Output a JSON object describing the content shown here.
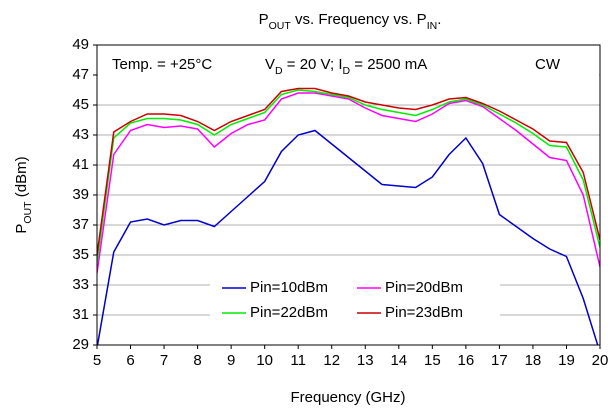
{
  "chart_data": {
    "type": "line",
    "title": [
      {
        "text": "P"
      },
      {
        "sub": "OUT"
      },
      {
        "text": " vs. Frequency vs. P"
      },
      {
        "sub": "IN"
      },
      {
        "text": "."
      }
    ],
    "xlabel": "Frequency (GHz)",
    "ylabel": [
      {
        "text": "P"
      },
      {
        "sub": "OUT"
      },
      {
        "text": " (dBm)"
      }
    ],
    "annotations": [
      [
        {
          "text": "Temp. = +25°C"
        }
      ],
      [
        {
          "text": "V"
        },
        {
          "sub": "D"
        },
        {
          "text": " = 20 V; I"
        },
        {
          "sub": "D"
        },
        {
          "text": " = 2500 mA"
        }
      ],
      [
        {
          "text": "CW"
        }
      ]
    ],
    "x": [
      5,
      5.5,
      6,
      6.5,
      7,
      7.5,
      8,
      8.5,
      9,
      9.5,
      10,
      10.5,
      11,
      11.5,
      12,
      12.5,
      13,
      13.5,
      14,
      14.5,
      15,
      15.5,
      16,
      16.5,
      17,
      17.5,
      18,
      18.5,
      19,
      19.5,
      20
    ],
    "series": [
      {
        "name": "Pin=10dBm",
        "color": "#0000cc",
        "values": [
          28.8,
          35.2,
          37.2,
          37.4,
          37.0,
          37.3,
          37.3,
          36.9,
          37.9,
          38.9,
          39.9,
          41.9,
          43.0,
          43.3,
          42.4,
          41.5,
          40.6,
          39.7,
          39.6,
          39.5,
          40.2,
          41.7,
          42.8,
          41.1,
          37.7,
          36.9,
          36.1,
          35.4,
          34.9,
          32.1,
          28.5
        ]
      },
      {
        "name": "Pin=20dBm",
        "color": "#ff00ff",
        "values": [
          33.8,
          41.7,
          43.3,
          43.7,
          43.5,
          43.6,
          43.4,
          42.2,
          43.1,
          43.7,
          44.0,
          45.4,
          45.8,
          45.8,
          45.6,
          45.4,
          44.8,
          44.3,
          44.1,
          43.9,
          44.4,
          45.1,
          45.3,
          44.9,
          44.1,
          43.3,
          42.4,
          41.5,
          41.3,
          39.0,
          34.2
        ]
      },
      {
        "name": "Pin=22dBm",
        "color": "#00ee00",
        "values": [
          34.5,
          42.8,
          43.8,
          44.1,
          44.1,
          44.0,
          43.7,
          43.0,
          43.7,
          44.1,
          44.5,
          45.7,
          46.0,
          45.9,
          45.7,
          45.5,
          45.0,
          44.7,
          44.5,
          44.3,
          44.7,
          45.2,
          45.4,
          45.0,
          44.4,
          43.8,
          43.1,
          42.3,
          42.2,
          40.0,
          35.5
        ]
      },
      {
        "name": "Pin=23dBm",
        "color": "#cc0000",
        "values": [
          35.0,
          43.2,
          43.9,
          44.4,
          44.4,
          44.3,
          43.9,
          43.3,
          43.9,
          44.3,
          44.7,
          45.9,
          46.1,
          46.1,
          45.8,
          45.6,
          45.2,
          45.0,
          44.8,
          44.7,
          45.0,
          45.4,
          45.5,
          45.1,
          44.6,
          44.0,
          43.4,
          42.6,
          42.5,
          40.5,
          36.0
        ]
      }
    ],
    "xlim": [
      5,
      20
    ],
    "xticks": [
      5,
      6,
      7,
      8,
      9,
      10,
      11,
      12,
      13,
      14,
      15,
      16,
      17,
      18,
      19,
      20
    ],
    "ylim": [
      29,
      49
    ],
    "yticks": [
      29,
      31,
      33,
      35,
      37,
      39,
      41,
      43,
      45,
      47,
      49
    ],
    "grid": true,
    "legend": "lower center"
  }
}
